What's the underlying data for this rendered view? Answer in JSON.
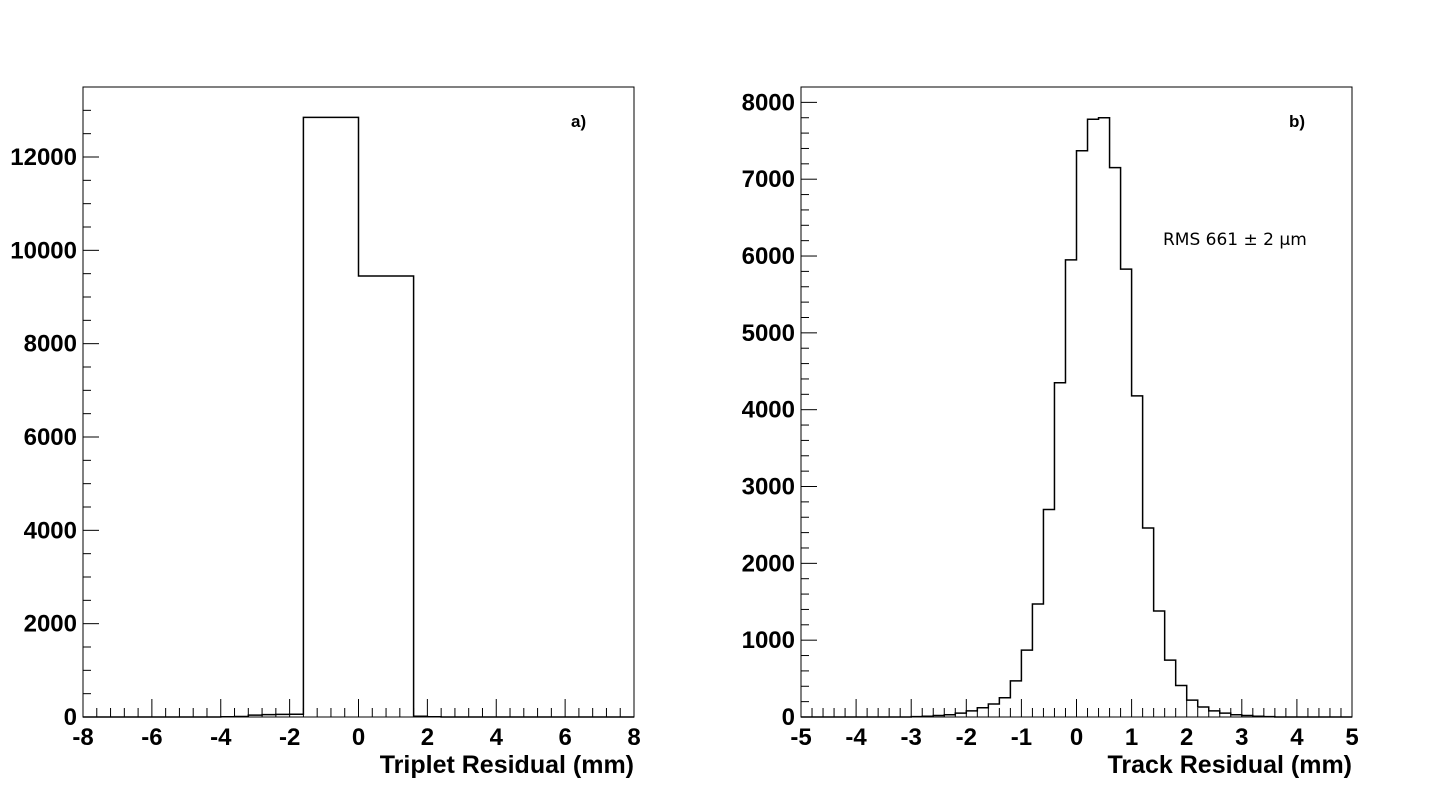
{
  "chart_data": [
    {
      "type": "histogram",
      "panel_label": "a)",
      "xlabel": "Triplet Residual (mm)",
      "ylabel": "",
      "xlim": [
        -8,
        8
      ],
      "ylim": [
        0,
        13500
      ],
      "x_ticks": [
        "-8",
        "-6",
        "-4",
        "-2",
        "0",
        "2",
        "4",
        "6",
        "8"
      ],
      "y_ticks": [
        "0",
        "2000",
        "4000",
        "6000",
        "8000",
        "10000",
        "12000"
      ],
      "bin_edges": [
        -8.0,
        -7.6,
        -7.2,
        -6.8,
        -6.4,
        -6.0,
        -5.6,
        -5.2,
        -4.8,
        -4.4,
        -4.0,
        -3.6,
        -3.2,
        -2.8,
        -2.4,
        -2.0,
        -1.6,
        0.0,
        1.6,
        2.0,
        2.4,
        2.8,
        3.2,
        3.6,
        4.0,
        4.4,
        4.8,
        5.2,
        5.6,
        6.0,
        6.4,
        6.8,
        7.2,
        7.6,
        8.0
      ],
      "values": [
        0,
        0,
        0,
        0,
        0,
        0,
        0,
        0,
        0,
        0,
        5,
        10,
        40,
        50,
        55,
        60,
        12850,
        9450,
        15,
        5,
        0,
        0,
        0,
        0,
        0,
        0,
        0,
        0,
        0,
        0,
        0,
        0,
        0,
        0
      ],
      "grid": false
    },
    {
      "type": "histogram",
      "panel_label": "b)",
      "xlabel": "Track Residual (mm)",
      "ylabel": "",
      "xlim": [
        -5,
        5
      ],
      "ylim": [
        0,
        8200
      ],
      "x_ticks": [
        "-5",
        "-4",
        "-3",
        "-2",
        "-1",
        "0",
        "1",
        "2",
        "3",
        "4",
        "5"
      ],
      "y_ticks": [
        "0",
        "1000",
        "2000",
        "3000",
        "4000",
        "5000",
        "6000",
        "7000",
        "8000"
      ],
      "bin_start": -5.0,
      "bin_width": 0.2,
      "values": [
        0,
        0,
        0,
        0,
        0,
        0,
        0,
        0,
        0,
        0,
        5,
        10,
        20,
        30,
        50,
        80,
        120,
        170,
        250,
        470,
        870,
        1470,
        2700,
        4350,
        5950,
        7370,
        7780,
        7800,
        7150,
        5830,
        4180,
        2460,
        1380,
        740,
        410,
        220,
        130,
        80,
        50,
        30,
        20,
        10,
        5,
        0,
        0,
        0,
        0,
        0,
        0,
        0
      ],
      "annotation": "RMS 661 ± 2 µm",
      "grid": false
    }
  ]
}
